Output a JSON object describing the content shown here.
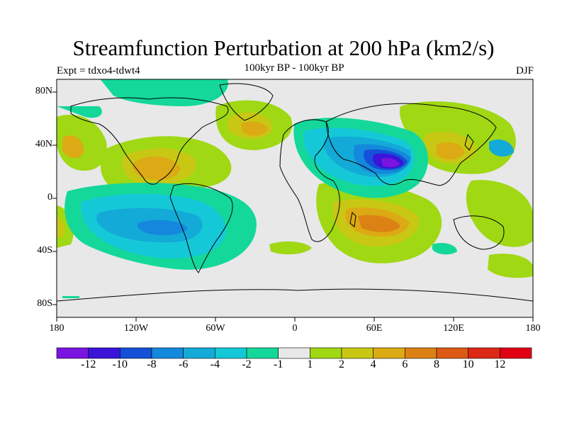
{
  "title": "Streamfunction Perturbation at 200 hPa (km2/s)",
  "subtitle_left": "Expt = tdxo4-tdwt4",
  "subtitle_center": "100kyr BP - 100kyr BP",
  "subtitle_right": "DJF",
  "lat_ticks": [
    "80N",
    "40N",
    "0",
    "40S",
    "80S"
  ],
  "lon_ticks": [
    "180",
    "120W",
    "60W",
    "0",
    "60E",
    "120E",
    "180"
  ],
  "colorbar": {
    "labels": [
      "-12",
      "-10",
      "-8",
      "-6",
      "-4",
      "-2",
      "-1",
      "1",
      "2",
      "4",
      "6",
      "8",
      "10",
      "12"
    ],
    "colors": [
      "#7a14e0",
      "#3a14d8",
      "#1450d8",
      "#1488dc",
      "#14aad8",
      "#14c8d8",
      "#14d89a",
      "#e8e8e8",
      "#a0d814",
      "#c8c814",
      "#dcaa14",
      "#dc8214",
      "#dc5a14",
      "#dc2814",
      "#e00014"
    ]
  }
}
